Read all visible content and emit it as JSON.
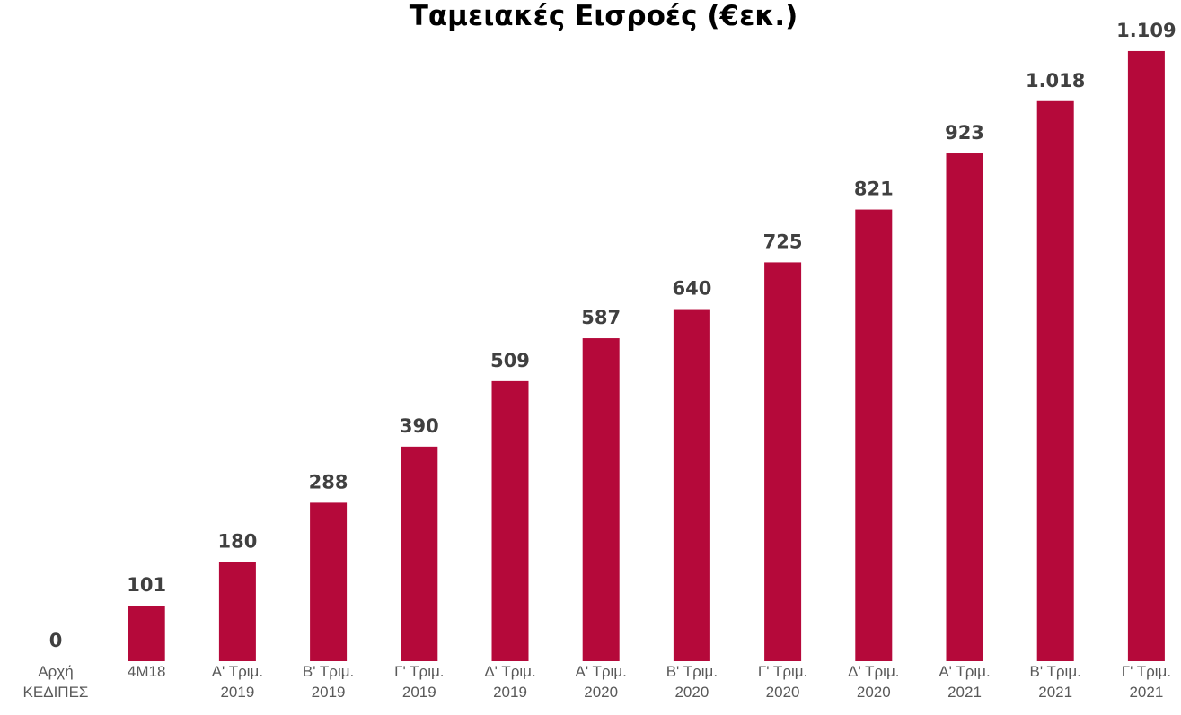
{
  "chart_data": {
    "type": "bar",
    "title": "Ταμειακές Εισροές (€εκ.)",
    "categories": [
      "Αρχή\nΚΕΔΙΠΕΣ",
      "4M18",
      "Α' Τριμ.\n2019",
      "Β' Τριμ.\n2019",
      "Γ' Τριμ.\n2019",
      "Δ'  Τριμ.\n2019",
      "Α' Τριμ.\n2020",
      "Β' Τριμ.\n2020",
      "Γ' Τριμ.\n2020",
      "Δ' Τριμ.\n2020",
      "Α' Τριμ.\n2021",
      "Β' Τριμ.\n2021",
      "Γ' Τριμ.\n2021"
    ],
    "values": [
      0,
      101,
      180,
      288,
      390,
      509,
      587,
      640,
      725,
      821,
      923,
      1018,
      1109
    ],
    "value_labels": [
      "0",
      "101",
      "180",
      "288",
      "390",
      "509",
      "587",
      "640",
      "725",
      "821",
      "923",
      "1.018",
      "1.109"
    ],
    "color": "#b5093a"
  }
}
